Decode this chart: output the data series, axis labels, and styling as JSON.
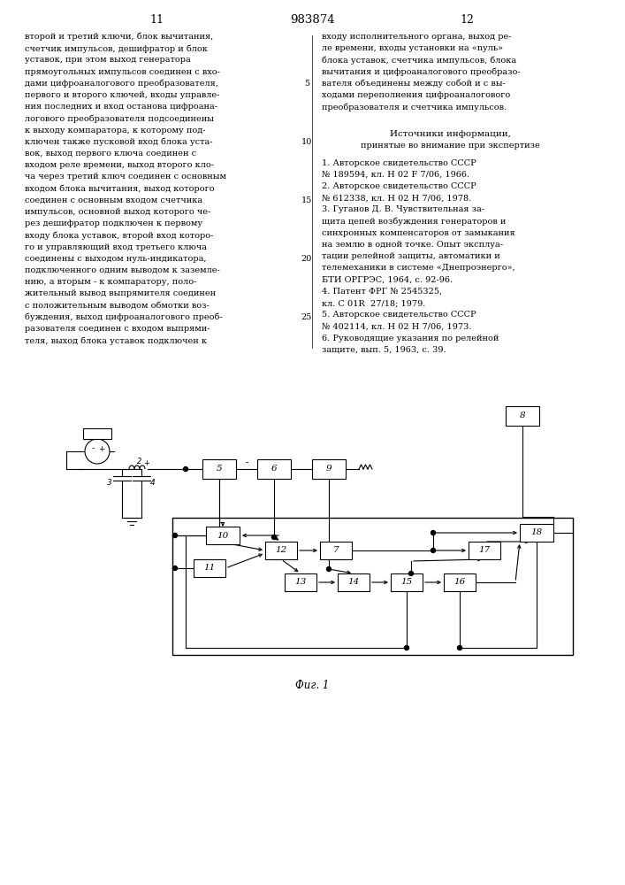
{
  "page_number_left": "11",
  "page_number_center": "983874",
  "page_number_right": "12",
  "col_left_text": [
    "второй и третий ключи, блок вычитания,",
    "счетчик импульсов, дешифратор и блок",
    "уставок, при этом выход генератора",
    "прямоугольных импульсов соединен с вхо-",
    "дами цифроаналогового преобразователя,",
    "первого и второго ключей, входы управле-",
    "ния последних и вход останова цифроана-",
    "логового преобразователя подсоединены",
    "к выходу компаратора, к которому под-",
    "ключен также пусковой вход блока уста-",
    "вок, выход первого ключа соединен с",
    "входом реле времени, выход второго кло-",
    "ча через третий ключ соединен с основным",
    "входом блока вычитания, выход которого",
    "соединен с основным входом счетчика",
    "импульсов, основной выход которого че-",
    "рез дешифратор подключен к первому",
    "входу блока уставок, второй вход которо-",
    "го и управляющий вход третьего ключа",
    "соединены с выходом нуль-индикатора,",
    "подключенного одним выводом к заземле-",
    "нию, а вторым - к компаратору, поло-",
    "жительный вывод выпрямителя соединен",
    "с положительным выводом обмотки воз-",
    "буждения, выход цифроаналогового преоб-",
    "разователя соединен с входом выпрями-",
    "теля, выход блока уставок подключен к"
  ],
  "col_right_text": [
    "входу исполнительного органа, выход ре-",
    "ле времени, входы установки на «nуль»",
    "блока уставок, счетчика импульсов, блока",
    "вычитания и цифроаналогового преобразо-",
    "вателя объединены между собой и с вы-",
    "ходами переполнения цифроаналогового",
    "преобразователя и счетчика импульсов."
  ],
  "sources_header": "Источники информации,",
  "sources_subheader": "принятые во внимание при экспертизе",
  "sources": [
    "1. Авторское свидетельство СССР",
    "№ 189594, кл. Н 02 F 7/06, 1966.",
    "2. Авторское свидетельство СССР",
    "№ 612338, кл. Н 02 Н 7/06, 1978.",
    "3. Гуганов Д. В. Чувствительная за-",
    "щита цепей возбуждения генераторов и",
    "синхронных компенсаторов от замыкания",
    "на землю в одной точке. Опыт эксплуа-",
    "тации релейной защиты, автоматики и",
    "телемеханики в системе «Днепроэнерго»,",
    "БТИ ОРГРЭС, 1964, с. 92-96.",
    "4. Патент ФРГ № 2545325,",
    "кл. С 01R  27/18; 1979.",
    "5. Авторское свидетельство СССР",
    "№ 402114, кл. Н 02 Н 7/06, 1973.",
    "6. Руководящие указания по релейной",
    "защите, вып. 5, 1963, с. 39."
  ],
  "fig_label": "Фиг. 1",
  "background_color": "#ffffff",
  "text_color": "#000000"
}
